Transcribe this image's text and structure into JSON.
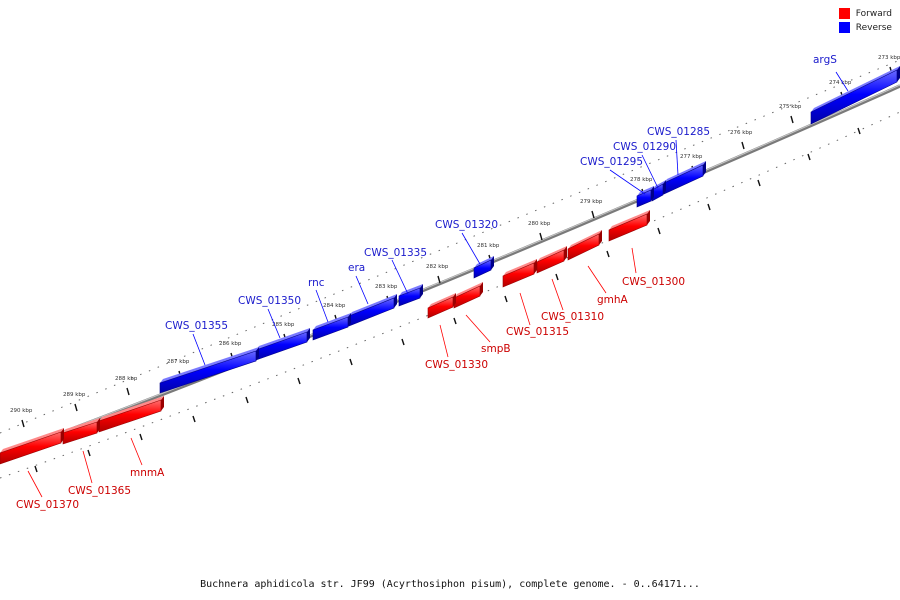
{
  "legend": {
    "items": [
      {
        "label": "Forward",
        "color": "#ff0000"
      },
      {
        "label": "Reverse",
        "color": "#0000ff"
      }
    ]
  },
  "caption": "Buchnera aphidicola str. JF99 (Acyrthosiphon pisum), complete genome. - 0..64171...",
  "ticks": [
    "290 kbp",
    "289 kbp",
    "288 kbp",
    "287 kbp",
    "286 kbp",
    "285 kbp",
    "284 kbp",
    "283 kbp",
    "282 kbp",
    "281 kbp",
    "280 kbp",
    "279 kbp",
    "278 kbp",
    "277 kbp",
    "276 kbp",
    "275 kbp",
    "274 kbp",
    "273 kbp"
  ],
  "genes": [
    {
      "name": "argS",
      "strand": "reverse"
    },
    {
      "name": "CWS_01285",
      "strand": "reverse"
    },
    {
      "name": "CWS_01290",
      "strand": "reverse"
    },
    {
      "name": "CWS_01295",
      "strand": "reverse"
    },
    {
      "name": "CWS_01320",
      "strand": "reverse"
    },
    {
      "name": "CWS_01335",
      "strand": "reverse"
    },
    {
      "name": "era",
      "strand": "reverse"
    },
    {
      "name": "rnc",
      "strand": "reverse"
    },
    {
      "name": "CWS_01350",
      "strand": "reverse"
    },
    {
      "name": "CWS_01355",
      "strand": "reverse"
    },
    {
      "name": "CWS_01300",
      "strand": "forward"
    },
    {
      "name": "gmhA",
      "strand": "forward"
    },
    {
      "name": "CWS_01310",
      "strand": "forward"
    },
    {
      "name": "CWS_01315",
      "strand": "forward"
    },
    {
      "name": "smpB",
      "strand": "forward"
    },
    {
      "name": "CWS_01330",
      "strand": "forward"
    },
    {
      "name": "mnmA",
      "strand": "forward"
    },
    {
      "name": "CWS_01365",
      "strand": "forward"
    },
    {
      "name": "CWS_01370",
      "strand": "forward"
    }
  ],
  "colors": {
    "forward": "#ff0000",
    "reverse": "#0000ff",
    "forward_label": "#cc0000",
    "reverse_label": "#1a1acc",
    "backbone": "#888888"
  }
}
